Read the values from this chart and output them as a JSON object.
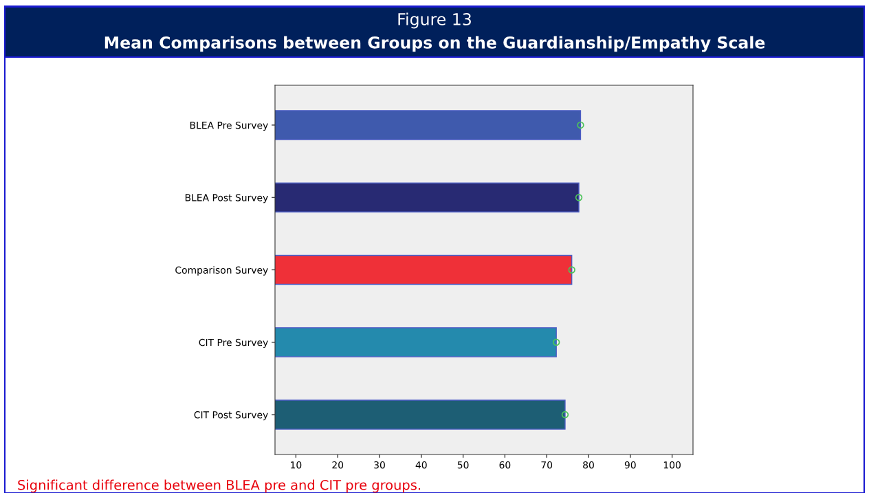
{
  "chart_data": {
    "type": "bar",
    "orientation": "horizontal",
    "title": "Figure 13",
    "subtitle": "Mean Comparisons between Groups on the Guardianship/Empathy Scale",
    "categories": [
      "BLEA Pre Survey",
      "BLEA Post Survey",
      "Comparison Survey",
      "CIT Pre Survey",
      "CIT Post Survey"
    ],
    "series": [
      {
        "values": [
          78.1,
          77.7,
          76.0,
          72.3,
          74.4
        ],
        "colors": [
          "#3f5aad",
          "#282a73",
          "#ef3038",
          "#248aad",
          "#1d5e74"
        ]
      },
      {
        "type": "scatter",
        "marker": "circle",
        "color": "#4cc35a",
        "values": [
          78.1,
          77.7,
          76.0,
          72.3,
          74.4
        ]
      }
    ],
    "xlim": [
      5,
      105
    ],
    "xticks": [
      10,
      20,
      30,
      40,
      50,
      60,
      70,
      80,
      90,
      100
    ],
    "grid": false,
    "annotations": [
      "Significant difference between BLEA pre and CIT pre groups."
    ]
  }
}
